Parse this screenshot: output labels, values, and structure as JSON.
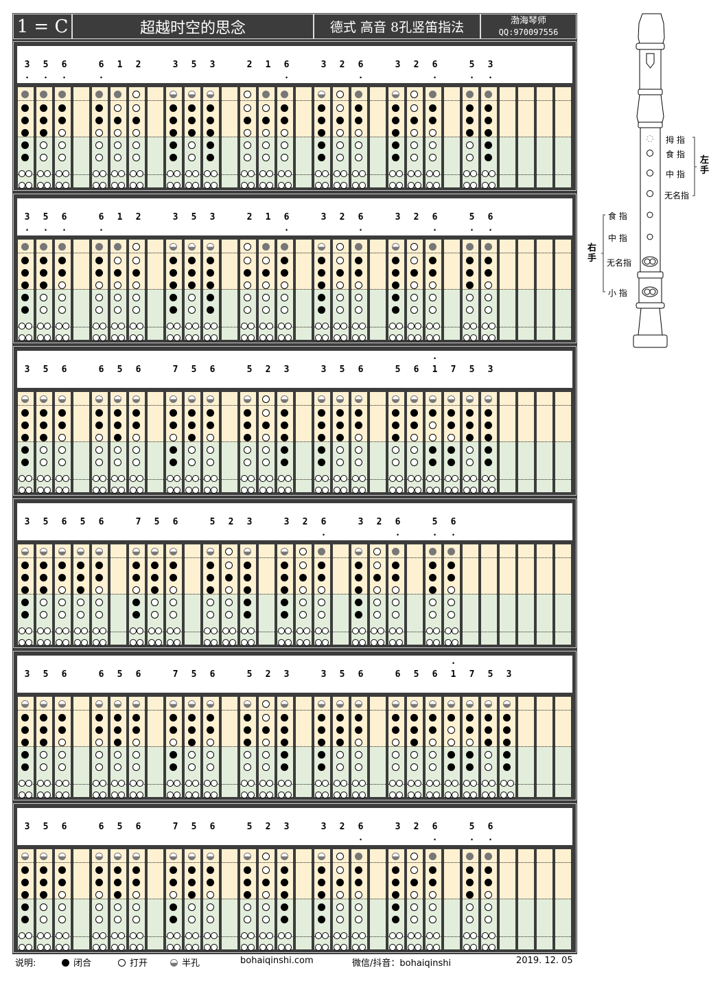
{
  "header": {
    "key": "1 = C",
    "title": "超越时空的思念",
    "subtitle": "德式 高音 8孔竖笛指法",
    "author": "渤海琴师",
    "qq": "QQ:970097556"
  },
  "colors": {
    "frame": "#3c3c3c",
    "upper_bg": "#fdf1d2",
    "lower_bg": "#e2eedb",
    "closed": "#000000",
    "thumb_closed": "#777777"
  },
  "hole_legend_codes": {
    "x": "closed",
    "g": "thumb closed (gray)",
    "h": "half",
    "o": "open"
  },
  "sections": [
    {
      "columns": [
        {
          "n": "3",
          "d": "below",
          "h": "gxxxxxoo"
        },
        {
          "n": "5",
          "d": "below",
          "h": "gxxxoooo"
        },
        {
          "n": "6",
          "d": "below",
          "h": "gxxooooo"
        },
        null,
        {
          "n": "6",
          "d": "below",
          "h": "gxxooooo"
        },
        {
          "n": "1",
          "d": "",
          "h": "goxooooo"
        },
        {
          "n": "2",
          "d": "",
          "h": "ooxooooo"
        },
        null,
        {
          "n": "3",
          "d": "",
          "h": "hxxxxxoo"
        },
        {
          "n": "5",
          "d": "",
          "h": "hxxxoooo"
        },
        {
          "n": "3",
          "d": "",
          "h": "hxxxxxoo"
        },
        null,
        {
          "n": "2",
          "d": "",
          "h": "ooxooooo"
        },
        {
          "n": "1",
          "d": "",
          "h": "goxooooo"
        },
        {
          "n": "6",
          "d": "below",
          "h": "gxxooooo"
        },
        null,
        {
          "n": "3",
          "d": "",
          "h": "hxxxxxoo"
        },
        {
          "n": "2",
          "d": "",
          "h": "ooxooooo"
        },
        {
          "n": "6",
          "d": "below",
          "h": "gxxooooo"
        },
        null,
        {
          "n": "3",
          "d": "",
          "h": "hxxxxxoo"
        },
        {
          "n": "2",
          "d": "",
          "h": "ooxooooo"
        },
        {
          "n": "6",
          "d": "below",
          "h": "gxxooooo"
        },
        null,
        {
          "n": "5",
          "d": "below",
          "h": "gxxxoooo"
        },
        {
          "n": "3",
          "d": "below",
          "h": "gxxxxxoo"
        },
        null,
        null,
        null,
        null
      ]
    },
    {
      "columns": [
        {
          "n": "3",
          "d": "below",
          "h": "gxxxxxoo"
        },
        {
          "n": "5",
          "d": "below",
          "h": "gxxxoooo"
        },
        {
          "n": "6",
          "d": "below",
          "h": "gxxooooo"
        },
        null,
        {
          "n": "6",
          "d": "below",
          "h": "gxxooooo"
        },
        {
          "n": "1",
          "d": "",
          "h": "goxooooo"
        },
        {
          "n": "2",
          "d": "",
          "h": "ooxooooo"
        },
        null,
        {
          "n": "3",
          "d": "",
          "h": "hxxxxxoo"
        },
        {
          "n": "5",
          "d": "",
          "h": "hxxxoooo"
        },
        {
          "n": "3",
          "d": "",
          "h": "hxxxxxoo"
        },
        null,
        {
          "n": "2",
          "d": "",
          "h": "ooxooooo"
        },
        {
          "n": "1",
          "d": "",
          "h": "goxooooo"
        },
        {
          "n": "6",
          "d": "below",
          "h": "gxxooooo"
        },
        null,
        {
          "n": "3",
          "d": "",
          "h": "hxxxxxoo"
        },
        {
          "n": "2",
          "d": "",
          "h": "ooxooooo"
        },
        {
          "n": "6",
          "d": "below",
          "h": "gxxooooo"
        },
        null,
        {
          "n": "3",
          "d": "",
          "h": "hxxxxxoo"
        },
        {
          "n": "2",
          "d": "",
          "h": "ooxooooo"
        },
        {
          "n": "6",
          "d": "below",
          "h": "gxxooooo"
        },
        null,
        {
          "n": "5",
          "d": "below",
          "h": "gxxxoooo"
        },
        {
          "n": "6",
          "d": "below",
          "h": "gxxooooo"
        },
        null,
        null,
        null,
        null
      ]
    },
    {
      "columns": [
        {
          "n": "3",
          "d": "",
          "h": "hxxxxxoo"
        },
        {
          "n": "5",
          "d": "",
          "h": "hxxxoooo"
        },
        {
          "n": "6",
          "d": "",
          "h": "hxxooooo"
        },
        null,
        {
          "n": "6",
          "d": "",
          "h": "hxxooooo"
        },
        {
          "n": "5",
          "d": "",
          "h": "hxxxoooo"
        },
        {
          "n": "6",
          "d": "",
          "h": "hxxooooo"
        },
        null,
        {
          "n": "7",
          "d": "",
          "h": "hxxoxxoo"
        },
        {
          "n": "5",
          "d": "",
          "h": "hxxxoooo"
        },
        {
          "n": "6",
          "d": "",
          "h": "hxxooooo"
        },
        null,
        {
          "n": "5",
          "d": "",
          "h": "hxxxoooo"
        },
        {
          "n": "2",
          "d": "",
          "h": "ooxooooo"
        },
        {
          "n": "3",
          "d": "",
          "h": "hxxxxxoo"
        },
        null,
        {
          "n": "3",
          "d": "",
          "h": "hxxxxxoo"
        },
        {
          "n": "5",
          "d": "",
          "h": "hxxxoooo"
        },
        {
          "n": "6",
          "d": "",
          "h": "hxxooooo"
        },
        null,
        {
          "n": "5",
          "d": "",
          "h": "hxxxoooo"
        },
        {
          "n": "6",
          "d": "",
          "h": "hxxooooo"
        },
        {
          "n": "1",
          "d": "above",
          "h": "hxooxxoo"
        },
        {
          "n": "7",
          "d": "",
          "h": "hxxoxxoo"
        },
        {
          "n": "5",
          "d": "",
          "h": "hxxxoooo"
        },
        {
          "n": "3",
          "d": "",
          "h": "hxxxxxoo"
        },
        null,
        null,
        null,
        null
      ]
    },
    {
      "columns": [
        {
          "n": "3",
          "d": "",
          "h": "hxxxxxoo"
        },
        {
          "n": "5",
          "d": "",
          "h": "hxxxoooo"
        },
        {
          "n": "6",
          "d": "",
          "h": "hxxooooo"
        },
        {
          "n": "5",
          "d": "",
          "h": "hxxxoooo"
        },
        {
          "n": "6",
          "d": "",
          "h": "hxxooooo"
        },
        null,
        {
          "n": "7",
          "d": "",
          "h": "hxxoxxoo"
        },
        {
          "n": "5",
          "d": "",
          "h": "hxxxoooo"
        },
        {
          "n": "6",
          "d": "",
          "h": "hxxooooo"
        },
        null,
        {
          "n": "5",
          "d": "",
          "h": "hxxxoooo"
        },
        {
          "n": "2",
          "d": "",
          "h": "ooxooooo"
        },
        {
          "n": "3",
          "d": "",
          "h": "hxxxxxoo"
        },
        null,
        {
          "n": "3",
          "d": "",
          "h": "hxxxxxoo"
        },
        {
          "n": "2",
          "d": "",
          "h": "ooxooooo"
        },
        {
          "n": "6",
          "d": "below",
          "h": "gxxooooo"
        },
        null,
        {
          "n": "3",
          "d": "",
          "h": "hxxxxxoo"
        },
        {
          "n": "2",
          "d": "",
          "h": "ooxooooo"
        },
        {
          "n": "6",
          "d": "below",
          "h": "gxxooooo"
        },
        null,
        {
          "n": "5",
          "d": "below",
          "h": "gxxxoooo"
        },
        {
          "n": "6",
          "d": "below",
          "h": "gxxooooo"
        },
        null,
        null,
        null,
        null,
        null,
        null
      ]
    },
    {
      "columns": [
        {
          "n": "3",
          "d": "",
          "h": "hxxxxxoo"
        },
        {
          "n": "5",
          "d": "",
          "h": "hxxxoooo"
        },
        {
          "n": "6",
          "d": "",
          "h": "hxxooooo"
        },
        null,
        {
          "n": "6",
          "d": "",
          "h": "hxxooooo"
        },
        {
          "n": "5",
          "d": "",
          "h": "hxxxoooo"
        },
        {
          "n": "6",
          "d": "",
          "h": "hxxooooo"
        },
        null,
        {
          "n": "7",
          "d": "",
          "h": "hxxoxxoo"
        },
        {
          "n": "5",
          "d": "",
          "h": "hxxxoooo"
        },
        {
          "n": "6",
          "d": "",
          "h": "hxxooooo"
        },
        null,
        {
          "n": "5",
          "d": "",
          "h": "hxxxoooo"
        },
        {
          "n": "2",
          "d": "",
          "h": "ooxooooo"
        },
        {
          "n": "3",
          "d": "",
          "h": "hxxxxxoo"
        },
        null,
        {
          "n": "3",
          "d": "",
          "h": "hxxxxxoo"
        },
        {
          "n": "5",
          "d": "",
          "h": "hxxxoooo"
        },
        {
          "n": "6",
          "d": "",
          "h": "hxxooooo"
        },
        null,
        {
          "n": "6",
          "d": "",
          "h": "hxxooooo"
        },
        {
          "n": "5",
          "d": "",
          "h": "hxxxoooo"
        },
        {
          "n": "6",
          "d": "",
          "h": "hxxooooo"
        },
        {
          "n": "1",
          "d": "above",
          "h": "hxooxxoo"
        },
        {
          "n": "7",
          "d": "",
          "h": "hxxoxxoo"
        },
        {
          "n": "5",
          "d": "",
          "h": "hxxxoooo"
        },
        {
          "n": "3",
          "d": "",
          "h": "hxxxxxoo"
        },
        null,
        null,
        null
      ]
    },
    {
      "columns": [
        {
          "n": "3",
          "d": "",
          "h": "hxxxxxoo"
        },
        {
          "n": "5",
          "d": "",
          "h": "hxxxoooo"
        },
        {
          "n": "6",
          "d": "",
          "h": "hxxooooo"
        },
        null,
        {
          "n": "6",
          "d": "",
          "h": "hxxooooo"
        },
        {
          "n": "5",
          "d": "",
          "h": "hxxxoooo"
        },
        {
          "n": "6",
          "d": "",
          "h": "hxxooooo"
        },
        null,
        {
          "n": "7",
          "d": "",
          "h": "hxxoxxoo"
        },
        {
          "n": "5",
          "d": "",
          "h": "hxxxoooo"
        },
        {
          "n": "6",
          "d": "",
          "h": "hxxooooo"
        },
        null,
        {
          "n": "5",
          "d": "",
          "h": "hxxxoooo"
        },
        {
          "n": "2",
          "d": "",
          "h": "ooxooooo"
        },
        {
          "n": "3",
          "d": "",
          "h": "hxxxxxoo"
        },
        null,
        {
          "n": "3",
          "d": "",
          "h": "hxxxxxoo"
        },
        {
          "n": "2",
          "d": "",
          "h": "ooxooooo"
        },
        {
          "n": "6",
          "d": "below",
          "h": "gxxooooo"
        },
        null,
        {
          "n": "3",
          "d": "",
          "h": "hxxxxxoo"
        },
        {
          "n": "2",
          "d": "",
          "h": "ooxooooo"
        },
        {
          "n": "6",
          "d": "below",
          "h": "gxxooooo"
        },
        null,
        {
          "n": "5",
          "d": "below",
          "h": "gxxxoooo"
        },
        {
          "n": "6",
          "d": "below",
          "h": "gxxooooo"
        },
        null,
        null,
        null,
        null
      ]
    }
  ],
  "flute": {
    "left_hand": "左手",
    "right_hand": "右手",
    "left_labels": [
      "拇 指",
      "食 指",
      "中 指",
      "无名指"
    ],
    "right_labels": [
      "食 指",
      "中 指",
      "无名指",
      "小 指"
    ]
  },
  "footer": {
    "legend_title": "说明:",
    "closed": "闭合",
    "open": "打开",
    "half": "半孔",
    "website": "bohaiqinshi.com",
    "social": "微信/抖音：bohaiqinshi",
    "date": "2019. 12. 05"
  }
}
